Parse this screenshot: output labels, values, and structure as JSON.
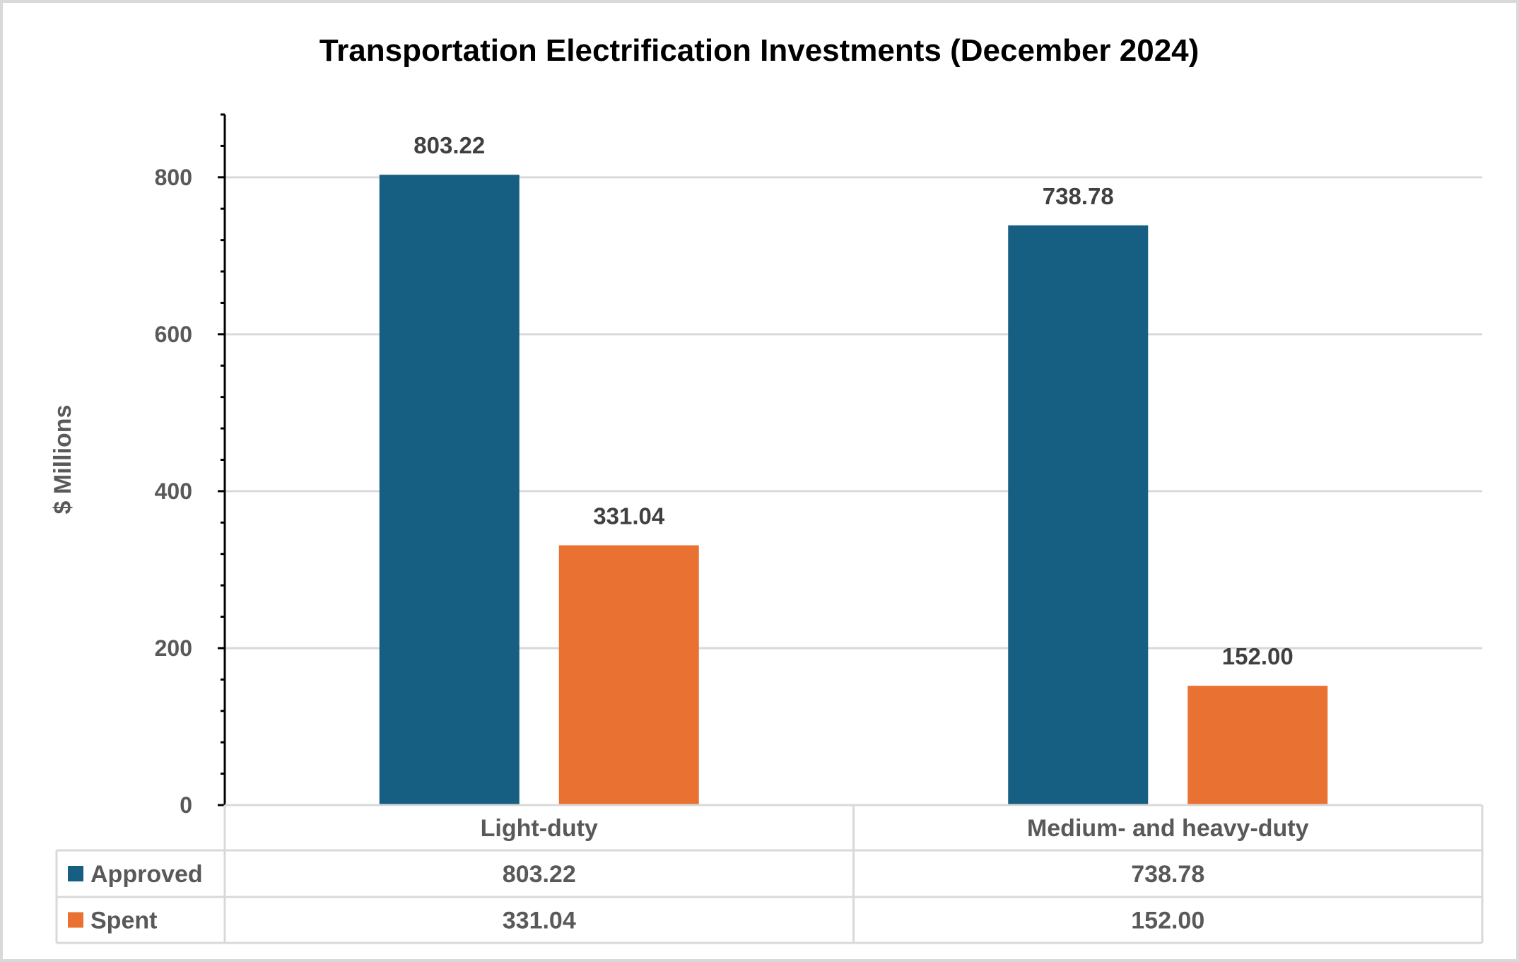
{
  "chart_data": {
    "type": "bar",
    "title": "Transportation Electrification Investments (December 2024)",
    "ylabel": "$ Millions",
    "xlabel": "",
    "categories": [
      "Light-duty",
      "Medium- and heavy-duty"
    ],
    "series": [
      {
        "name": "Approved",
        "values": [
          803.22,
          738.78
        ],
        "labels": [
          "803.22",
          "738.78"
        ],
        "color": "#175f82"
      },
      {
        "name": "Spent",
        "values": [
          331.04,
          152.0
        ],
        "labels": [
          "331.04",
          "152.00"
        ],
        "color": "#e97132"
      }
    ],
    "ylim": [
      0,
      880
    ],
    "yticks": [
      0,
      200,
      400,
      600,
      800
    ],
    "ytick_labels": [
      "0",
      "200",
      "400",
      "600",
      "800"
    ],
    "minor_tick_step": 40,
    "grid": true,
    "legend": "data-table"
  }
}
